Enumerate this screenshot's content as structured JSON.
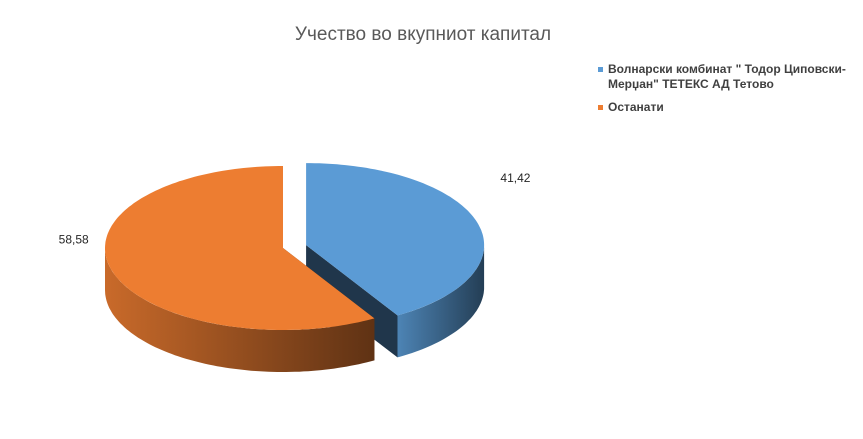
{
  "chart_data": {
    "type": "pie3d",
    "title": "Учество во вкупниот капитал",
    "categories": [
      "Волнарски комбинат \" Тодор Циповски-Мерџан\" ТЕТЕКС АД Тетово",
      "Останати"
    ],
    "values": [
      41.42,
      58.58
    ],
    "value_labels": [
      "41,42",
      "58,58"
    ],
    "colors": [
      "#5b9bd5",
      "#ed7d31"
    ],
    "legend": "right"
  }
}
